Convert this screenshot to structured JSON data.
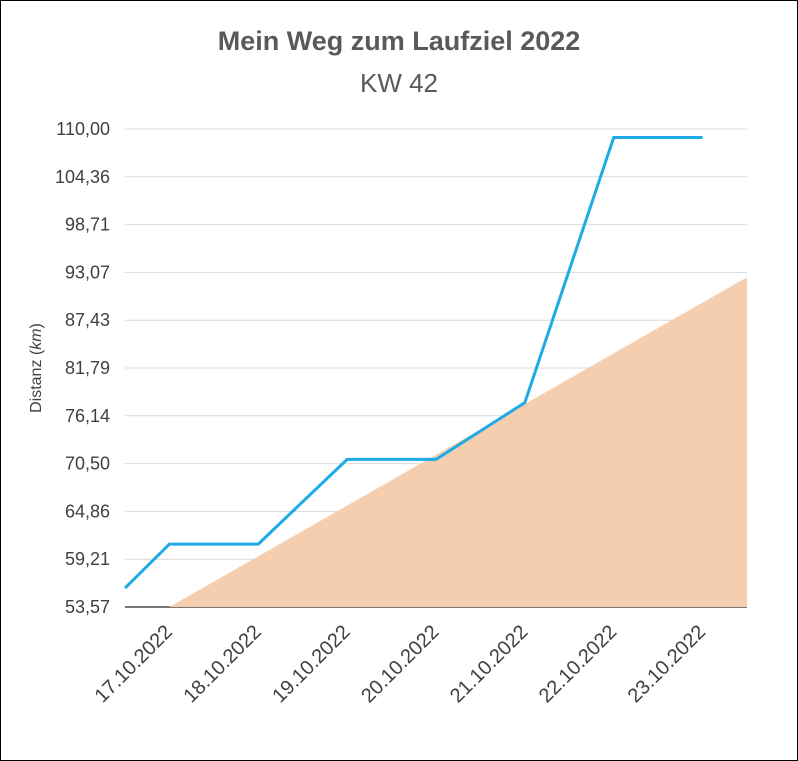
{
  "chart_data": {
    "type": "line",
    "title": "Mein Weg zum Laufziel 2022",
    "subtitle": "KW 42",
    "ylabel_main": "Distanz (",
    "ylabel_unit": "km",
    "ylabel_end": ")",
    "xlabel": "",
    "ylim": [
      53.57,
      110.0
    ],
    "y_ticks": [
      "53,57",
      "59,21",
      "64,86",
      "70,50",
      "76,14",
      "81,79",
      "87,43",
      "93,07",
      "98,71",
      "104,36",
      "110,00"
    ],
    "categories": [
      "17.10.2022",
      "18.10.2022",
      "19.10.2022",
      "20.10.2022",
      "21.10.2022",
      "22.10.2022",
      "23.10.2022"
    ],
    "series": [
      {
        "type": "line",
        "color": "#1EAAE6",
        "x": [
          16.5,
          17.0,
          18.0,
          19.0,
          20.0,
          21.0,
          22.0,
          23.0
        ],
        "values": [
          55.8,
          61.0,
          61.0,
          71.0,
          71.0,
          77.7,
          109.0,
          109.0
        ]
      },
      {
        "type": "area",
        "color": "#F5CDAF",
        "x": [
          17.0,
          23.5
        ],
        "values": [
          53.57,
          92.5
        ]
      }
    ],
    "grid": true,
    "legend": "none"
  }
}
